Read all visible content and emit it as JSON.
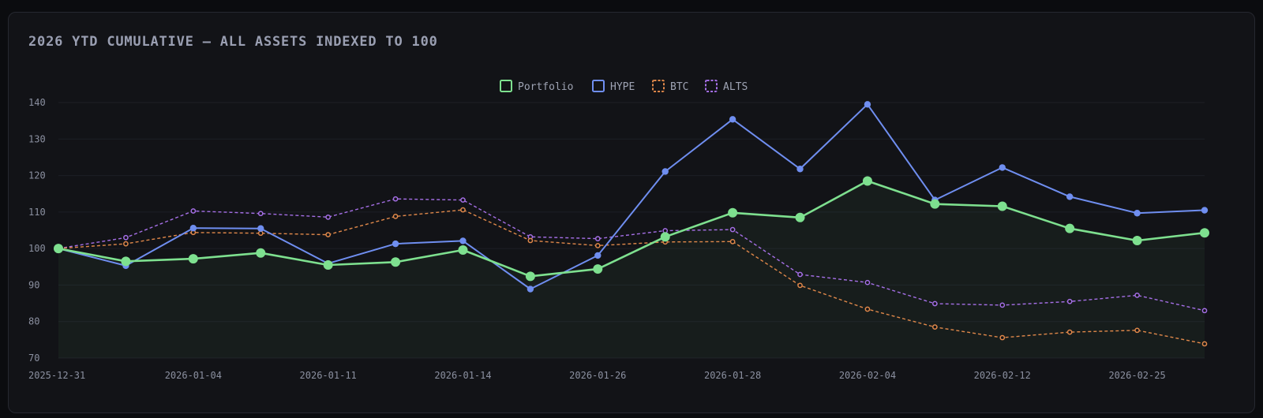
{
  "title": "2026 YTD CUMULATIVE — ALL ASSETS INDEXED TO 100",
  "chart_data": {
    "type": "line",
    "title": "2026 YTD CUMULATIVE — ALL ASSETS INDEXED TO 100",
    "xlabel": "",
    "ylabel": "",
    "ylim": [
      70,
      140
    ],
    "yticks": [
      70,
      80,
      90,
      100,
      110,
      120,
      130,
      140
    ],
    "x": [
      "2025-12-31",
      "",
      "2026-01-04",
      "",
      "2026-01-11",
      "",
      "2026-01-14",
      "",
      "2026-01-26",
      "",
      "2026-01-28",
      "",
      "2026-02-04",
      "",
      "2026-02-12",
      "",
      "2026-02-25",
      ""
    ],
    "xtick_labels": [
      "2025-12-31",
      "2026-01-04",
      "2026-01-11",
      "2026-01-14",
      "2026-01-26",
      "2026-01-28",
      "2026-02-04",
      "2026-02-12",
      "2026-02-25"
    ],
    "legend_position": "top-center",
    "grid": true,
    "series": [
      {
        "name": "Portfolio",
        "color": "#7ee08f",
        "style": "solid",
        "fill": true,
        "values": [
          100,
          96.5,
          97.2,
          98.8,
          95.5,
          96.3,
          99.6,
          92.4,
          94.4,
          103.2,
          109.8,
          108.5,
          118.5,
          112.2,
          111.6,
          105.5,
          102.2,
          104.3
        ]
      },
      {
        "name": "HYPE",
        "color": "#6f8ef0",
        "style": "solid",
        "fill": false,
        "values": [
          100,
          95.3,
          105.6,
          105.5,
          95.9,
          101.3,
          102.1,
          88.9,
          98.1,
          121.1,
          135.4,
          121.8,
          139.5,
          113.3,
          122.2,
          114.2,
          109.7,
          110.5
        ]
      },
      {
        "name": "BTC",
        "color": "#e0884a",
        "style": "dashed",
        "fill": false,
        "values": [
          100,
          101.3,
          104.4,
          104.2,
          103.8,
          108.8,
          110.6,
          102.2,
          100.8,
          101.8,
          101.9,
          89.9,
          83.4,
          78.5,
          75.6,
          77.1,
          77.6,
          73.9
        ]
      },
      {
        "name": "ALTS",
        "color": "#a56fe6",
        "style": "dashed",
        "fill": false,
        "values": [
          100,
          103.0,
          110.3,
          109.6,
          108.6,
          113.6,
          113.3,
          103.2,
          102.7,
          104.9,
          105.2,
          92.9,
          90.7,
          84.9,
          84.5,
          85.5,
          87.2,
          83.0
        ]
      }
    ]
  }
}
